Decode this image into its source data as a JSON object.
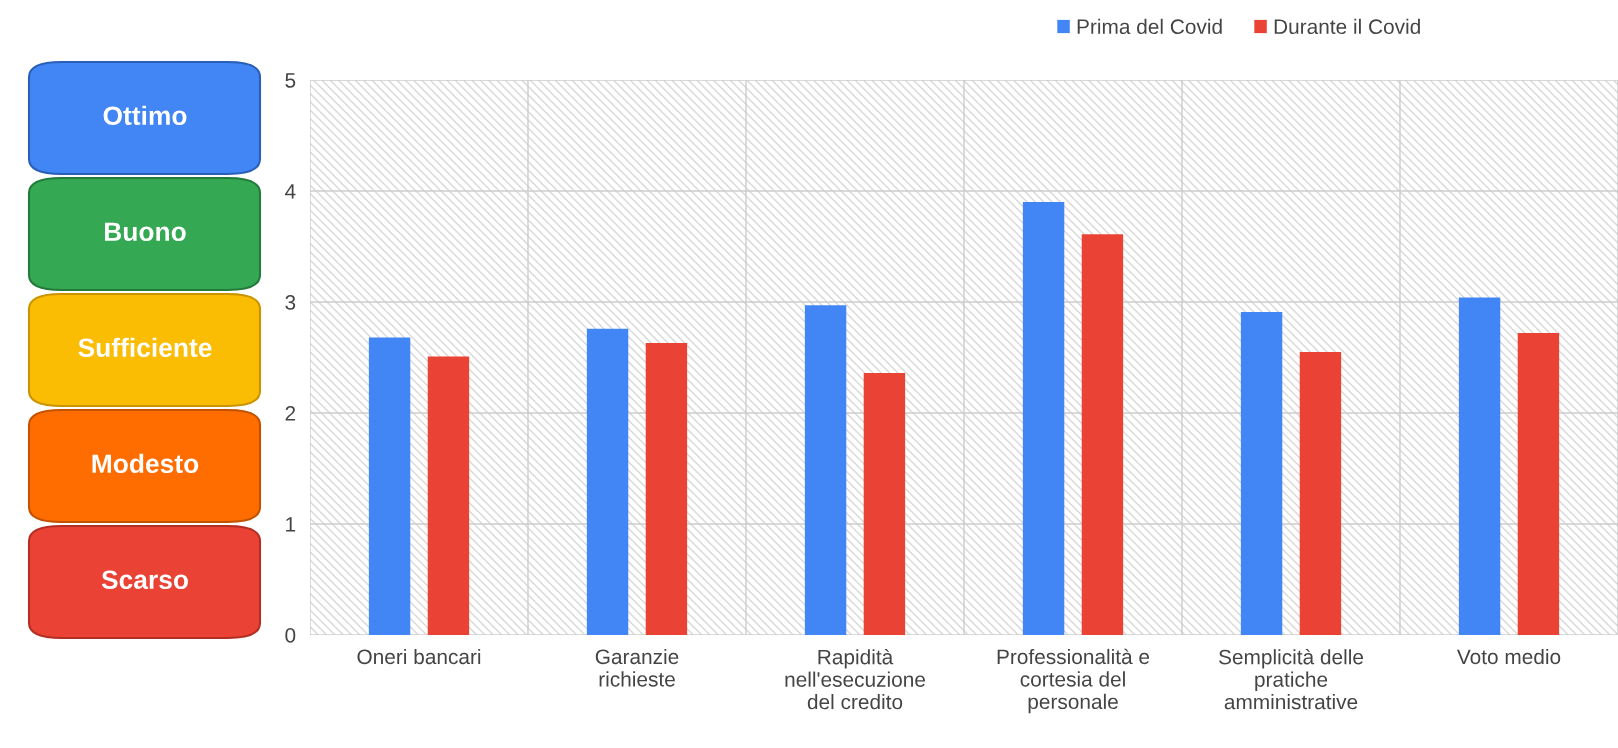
{
  "chart_data": {
    "type": "bar",
    "categories": [
      "Oneri bancari",
      "Garanzie\nrichieste",
      "Rapidità\nnell'esecuzione\ndel credito",
      "Professionalità e\ncortesia del\npersonale",
      "Semplicità delle\npratiche\namministrative",
      "Voto medio"
    ],
    "series": [
      {
        "name": "Prima del Covid",
        "color": "#4285f4",
        "values": [
          2.68,
          2.76,
          2.97,
          3.9,
          2.91,
          3.04
        ]
      },
      {
        "name": "Durante il Covid",
        "color": "#ea4335",
        "values": [
          2.51,
          2.63,
          2.36,
          3.61,
          2.55,
          2.72
        ]
      }
    ],
    "ylim": [
      0,
      5
    ],
    "yticks": [
      0,
      1,
      2,
      3,
      4,
      5
    ],
    "grid": true,
    "legend": "top right",
    "annotations": [
      "Ottimo",
      "Buono",
      "Sufficiente",
      "Modesto",
      "Scarso"
    ]
  }
}
